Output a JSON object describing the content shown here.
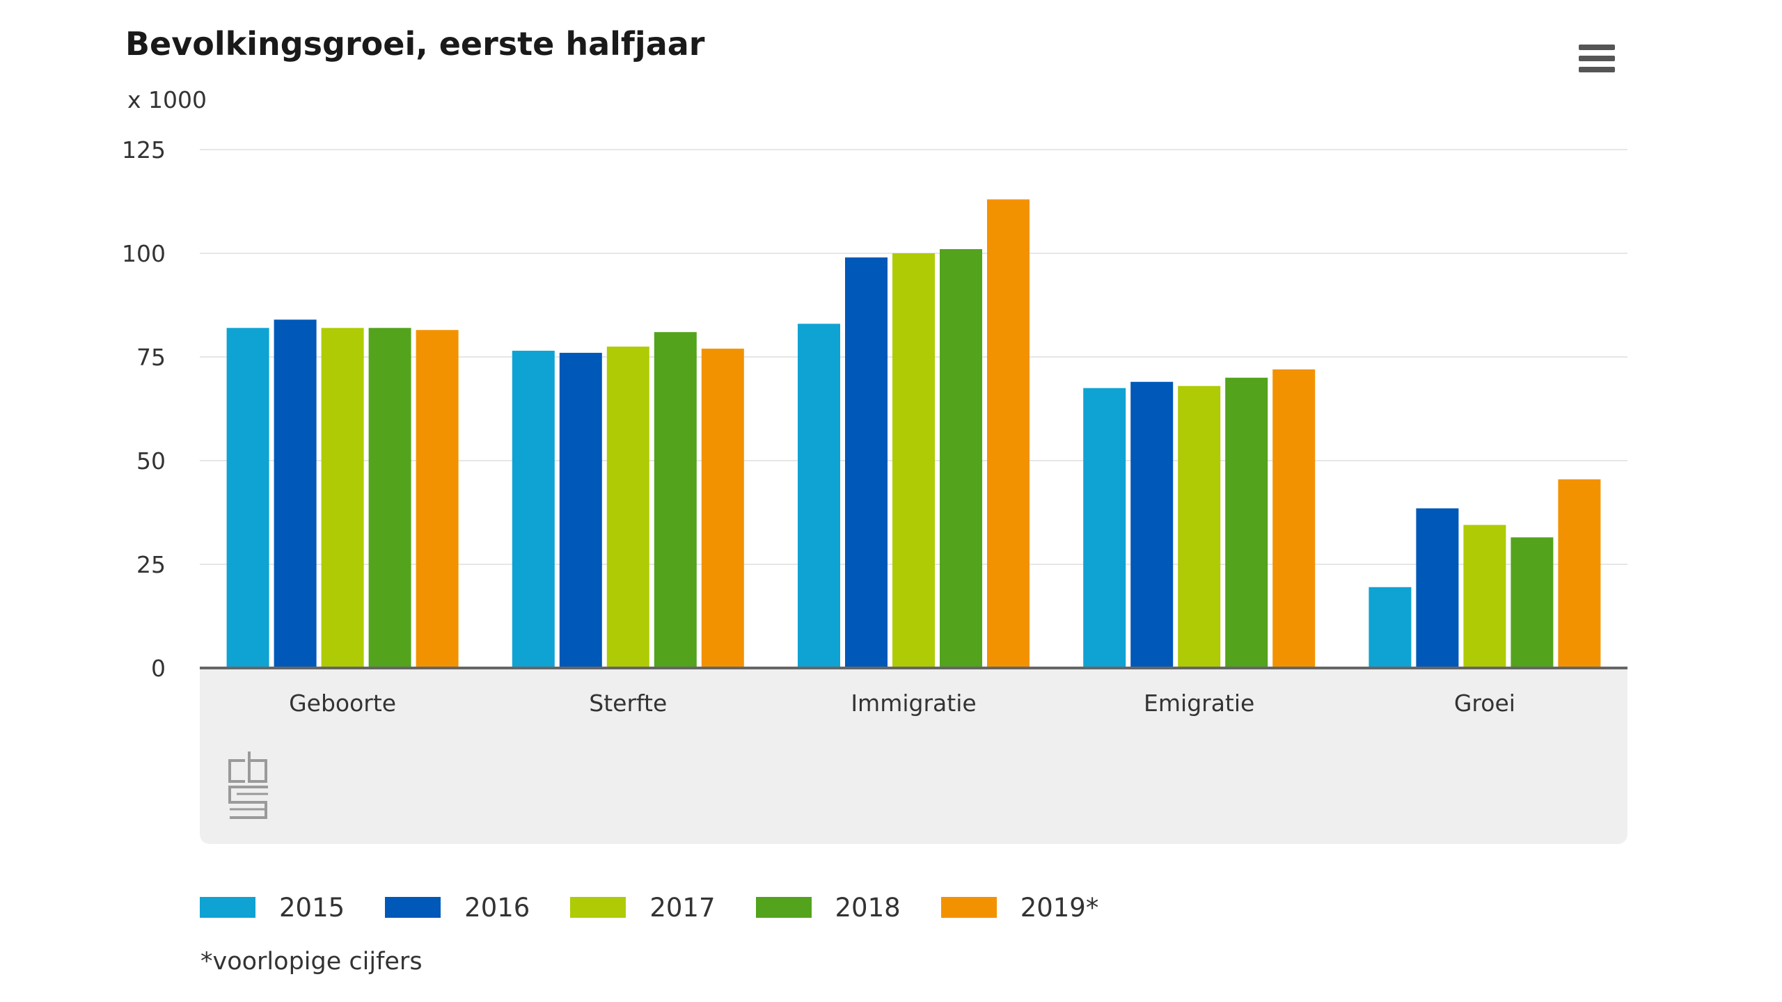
{
  "header": {
    "title": "Bevolkingsgroei, eerste halfjaar",
    "unit": "x 1000",
    "menu_icon": "hamburger-menu-icon"
  },
  "colors": {
    "2015": "#0fa3d3",
    "2016": "#0058b8",
    "2017": "#afcb05",
    "2018": "#53a31d",
    "2019": "#f39200",
    "axis": "#666666",
    "grid": "#e6e6e6",
    "category_band": "#efefef",
    "logo": "#9a9a9a"
  },
  "chart_data": {
    "type": "bar",
    "title": "Bevolkingsgroei, eerste halfjaar",
    "ylabel": "x 1000",
    "xlabel": "",
    "ylim": [
      0,
      125
    ],
    "yticks": [
      0,
      25,
      50,
      75,
      100,
      125
    ],
    "grid": true,
    "legend_position": "bottom",
    "categories": [
      "Geboorte",
      "Sterfte",
      "Immigratie",
      "Emigratie",
      "Groei"
    ],
    "series": [
      {
        "name": "2015",
        "color_key": "2015",
        "values": [
          82,
          76.5,
          83,
          67.5,
          19.5
        ]
      },
      {
        "name": "2016",
        "color_key": "2016",
        "values": [
          84,
          76,
          99,
          69,
          38.5
        ]
      },
      {
        "name": "2017",
        "color_key": "2017",
        "values": [
          82,
          77.5,
          100,
          68,
          34.5
        ]
      },
      {
        "name": "2018",
        "color_key": "2018",
        "values": [
          82,
          81,
          101,
          70,
          31.5
        ]
      },
      {
        "name": "2019*",
        "color_key": "2019",
        "values": [
          81.5,
          77,
          113,
          72,
          45.5
        ]
      }
    ]
  },
  "footnote": "*voorlopige cijfers",
  "logo": {
    "name": "cbs-logo-icon"
  }
}
